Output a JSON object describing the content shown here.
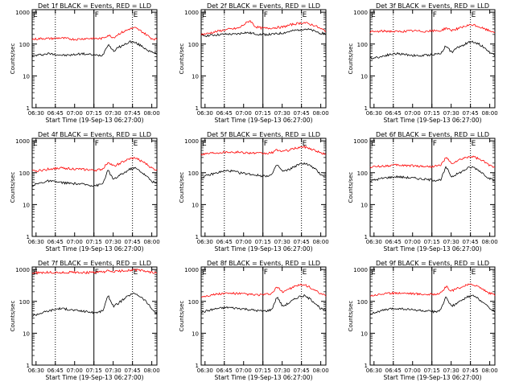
{
  "chart_data": [
    {
      "type": "line",
      "title": "Det 1f BLACK = Events, RED = LLD",
      "xlabel": "Start Time (19-Sep-13 06:27:00)",
      "ylabel": "Counts/sec",
      "x_ticks": [
        "06:30",
        "06:45",
        "07:00",
        "07:15",
        "07:30",
        "07:45",
        "08:00"
      ],
      "y_ticks": [
        "1",
        "10",
        "100",
        "1000"
      ],
      "ylim": [
        1,
        1200
      ],
      "y_scale": "log",
      "markers": [
        "E",
        "F",
        "E"
      ],
      "series": [
        {
          "color": "#000000",
          "values": [
            42,
            45,
            47,
            50,
            48,
            46,
            44,
            45,
            47,
            50,
            48,
            46,
            44,
            45,
            100,
            60,
            80,
            95,
            120,
            110,
            90,
            70,
            55,
            50
          ]
        },
        {
          "color": "#ff0000",
          "values": [
            140,
            145,
            150,
            148,
            150,
            155,
            150,
            145,
            140,
            145,
            150,
            150,
            148,
            150,
            190,
            160,
            210,
            250,
            300,
            320,
            260,
            200,
            150,
            140
          ]
        }
      ]
    },
    {
      "type": "line",
      "title": "Det 2f BLACK = Events, RED = LLD",
      "xlabel": "Start Time (19-Sep-13 06:27:00)",
      "ylabel": "Counts/sec",
      "x_ticks": [
        "06:30",
        "06:45",
        "07:00",
        "07:15",
        "07:30",
        "07:45",
        "08:00"
      ],
      "y_ticks": [
        "1",
        "10",
        "100",
        "1000"
      ],
      "ylim": [
        1,
        1200
      ],
      "y_scale": "log",
      "markers": [
        "E",
        "F",
        "E"
      ],
      "series": [
        {
          "color": "#000000",
          "values": [
            180,
            185,
            190,
            195,
            200,
            205,
            200,
            210,
            230,
            220,
            210,
            200,
            200,
            200,
            210,
            220,
            240,
            260,
            280,
            300,
            280,
            250,
            220,
            210
          ]
        },
        {
          "color": "#ff0000",
          "values": [
            200,
            210,
            230,
            250,
            270,
            290,
            300,
            320,
            420,
            550,
            350,
            320,
            310,
            320,
            330,
            340,
            380,
            420,
            450,
            470,
            420,
            380,
            300,
            260
          ]
        }
      ]
    },
    {
      "type": "line",
      "title": "Det 3f BLACK = Events, RED = LLD",
      "xlabel": "Start Time (19-Sep-13 06:27:00)",
      "ylabel": "Counts/sec",
      "x_ticks": [
        "06:30",
        "06:45",
        "07:00",
        "07:15",
        "07:30",
        "07:45",
        "08:00"
      ],
      "y_ticks": [
        "1",
        "10",
        "100",
        "1000"
      ],
      "ylim": [
        1,
        1200
      ],
      "y_scale": "log",
      "markers": [
        "E",
        "F",
        "E"
      ],
      "series": [
        {
          "color": "#000000",
          "values": [
            35,
            38,
            40,
            45,
            48,
            50,
            48,
            46,
            44,
            42,
            44,
            46,
            48,
            50,
            90,
            55,
            75,
            90,
            110,
            120,
            100,
            80,
            55,
            45
          ]
        },
        {
          "color": "#ff0000",
          "values": [
            240,
            245,
            250,
            255,
            250,
            245,
            250,
            255,
            260,
            255,
            250,
            255,
            260,
            260,
            320,
            270,
            300,
            330,
            380,
            400,
            350,
            300,
            260,
            240
          ]
        }
      ]
    },
    {
      "type": "line",
      "title": "Det 4f BLACK = Events, RED = LLD",
      "xlabel": "Start Time (19-Sep-13 06:27:00)",
      "ylabel": "Counts/sec",
      "x_ticks": [
        "06:30",
        "06:45",
        "07:00",
        "07:15",
        "07:30",
        "07:45",
        "08:00"
      ],
      "y_ticks": [
        "1",
        "10",
        "100",
        "1000"
      ],
      "ylim": [
        1,
        1200
      ],
      "y_scale": "log",
      "markers": [
        "E",
        "F",
        "E"
      ],
      "series": [
        {
          "color": "#000000",
          "values": [
            40,
            45,
            50,
            55,
            52,
            50,
            48,
            46,
            45,
            44,
            42,
            40,
            40,
            45,
            120,
            60,
            80,
            100,
            130,
            140,
            110,
            80,
            55,
            45
          ]
        },
        {
          "color": "#ff0000",
          "values": [
            110,
            115,
            120,
            130,
            135,
            140,
            138,
            135,
            130,
            128,
            125,
            120,
            120,
            130,
            220,
            160,
            190,
            230,
            270,
            290,
            240,
            190,
            140,
            120
          ]
        }
      ]
    },
    {
      "type": "line",
      "title": "Det 5f BLACK = Events, RED = LLD",
      "xlabel": "Start Time (19-Sep-13 06:27:00)",
      "ylabel": "Counts/sec",
      "x_ticks": [
        "06:30",
        "06:45",
        "07:00",
        "07:15",
        "07:30",
        "07:45",
        "08:00"
      ],
      "y_ticks": [
        "1",
        "10",
        "100",
        "1000"
      ],
      "ylim": [
        1,
        1200
      ],
      "y_scale": "log",
      "markers": [
        "E",
        "F",
        "E"
      ],
      "series": [
        {
          "color": "#000000",
          "values": [
            70,
            80,
            90,
            100,
            110,
            115,
            110,
            100,
            95,
            90,
            85,
            80,
            80,
            85,
            180,
            110,
            120,
            150,
            180,
            200,
            170,
            130,
            90,
            75
          ]
        },
        {
          "color": "#ff0000",
          "values": [
            380,
            400,
            420,
            430,
            440,
            450,
            445,
            440,
            430,
            420,
            410,
            400,
            400,
            420,
            520,
            470,
            500,
            560,
            620,
            650,
            580,
            500,
            420,
            380
          ]
        }
      ]
    },
    {
      "type": "line",
      "title": "Det 6f BLACK = Events, RED = LLD",
      "xlabel": "Start Time (19-Sep-13 06:27:00)",
      "ylabel": "Counts/sec",
      "x_ticks": [
        "06:30",
        "06:45",
        "07:00",
        "07:15",
        "07:30",
        "07:45",
        "08:00"
      ],
      "y_ticks": [
        "1",
        "10",
        "100",
        "1000"
      ],
      "ylim": [
        1,
        1200
      ],
      "y_scale": "log",
      "markers": [
        "E",
        "F",
        "E"
      ],
      "series": [
        {
          "color": "#000000",
          "values": [
            55,
            60,
            65,
            70,
            72,
            75,
            72,
            70,
            68,
            65,
            62,
            60,
            58,
            60,
            150,
            75,
            90,
            110,
            140,
            150,
            120,
            90,
            65,
            55
          ]
        },
        {
          "color": "#ff0000",
          "values": [
            150,
            155,
            160,
            165,
            170,
            172,
            170,
            168,
            165,
            160,
            158,
            155,
            160,
            170,
            300,
            190,
            230,
            270,
            310,
            320,
            270,
            220,
            170,
            150
          ]
        }
      ]
    },
    {
      "type": "line",
      "title": "Det 7f BLACK = Events, RED = LLD",
      "xlabel": "Start Time (19-Sep-13 06:27:00)",
      "ylabel": "Counts/sec",
      "x_ticks": [
        "06:30",
        "06:45",
        "07:00",
        "07:15",
        "07:30",
        "07:45",
        "08:00"
      ],
      "y_ticks": [
        "1",
        "10",
        "100",
        "1000"
      ],
      "ylim": [
        1,
        1200
      ],
      "y_scale": "log",
      "markers": [
        "E",
        "F",
        "E"
      ],
      "series": [
        {
          "color": "#000000",
          "values": [
            35,
            40,
            45,
            50,
            55,
            60,
            58,
            55,
            52,
            50,
            48,
            45,
            45,
            50,
            150,
            70,
            90,
            120,
            160,
            180,
            140,
            100,
            60,
            40
          ]
        },
        {
          "color": "#ff0000",
          "values": [
            780,
            790,
            800,
            810,
            800,
            790,
            800,
            810,
            820,
            810,
            800,
            810,
            820,
            830,
            900,
            850,
            880,
            920,
            950,
            970,
            930,
            880,
            820,
            780
          ]
        }
      ]
    },
    {
      "type": "line",
      "title": "Det 8f BLACK = Events, RED = LLD",
      "xlabel": "Start Time (19-Sep-13 06:27:00)",
      "ylabel": "Counts/sec",
      "x_ticks": [
        "06:30",
        "06:45",
        "07:00",
        "07:15",
        "07:30",
        "07:45",
        "08:00"
      ],
      "y_ticks": [
        "1",
        "10",
        "100",
        "1000"
      ],
      "ylim": [
        1,
        1200
      ],
      "y_scale": "log",
      "markers": [
        "E",
        "F",
        "E"
      ],
      "series": [
        {
          "color": "#000000",
          "values": [
            45,
            50,
            55,
            60,
            62,
            65,
            62,
            60,
            58,
            55,
            52,
            50,
            50,
            55,
            140,
            70,
            85,
            110,
            140,
            150,
            120,
            90,
            60,
            50
          ]
        },
        {
          "color": "#ff0000",
          "values": [
            140,
            150,
            160,
            170,
            175,
            180,
            178,
            175,
            170,
            165,
            160,
            160,
            165,
            175,
            280,
            200,
            240,
            280,
            320,
            330,
            280,
            220,
            170,
            150
          ]
        }
      ]
    },
    {
      "type": "line",
      "title": "Det 9f BLACK = Events, RED = LLD",
      "xlabel": "Start Time (19-Sep-13 06:27:00)",
      "ylabel": "Counts/sec",
      "x_ticks": [
        "06:30",
        "06:45",
        "07:00",
        "07:15",
        "07:30",
        "07:45",
        "08:00"
      ],
      "y_ticks": [
        "1",
        "10",
        "100",
        "1000"
      ],
      "ylim": [
        1,
        1200
      ],
      "y_scale": "log",
      "markers": [
        "E",
        "F",
        "E"
      ],
      "series": [
        {
          "color": "#000000",
          "values": [
            40,
            45,
            50,
            55,
            58,
            60,
            58,
            56,
            54,
            52,
            50,
            48,
            48,
            52,
            140,
            70,
            85,
            110,
            140,
            150,
            120,
            90,
            60,
            50
          ]
        },
        {
          "color": "#ff0000",
          "values": [
            150,
            160,
            170,
            175,
            180,
            185,
            182,
            180,
            175,
            170,
            168,
            165,
            170,
            180,
            290,
            210,
            250,
            290,
            330,
            340,
            290,
            230,
            180,
            160
          ]
        }
      ]
    }
  ]
}
